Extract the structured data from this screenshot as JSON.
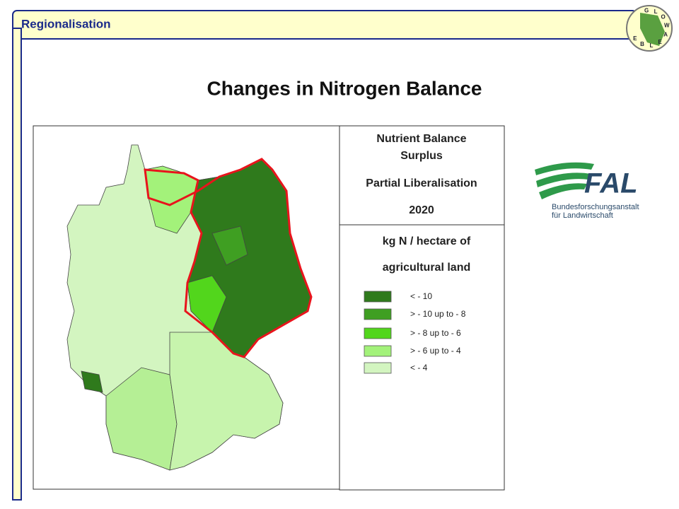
{
  "header": {
    "label": "Regionalisation"
  },
  "title": "Changes in Nitrogen Balance",
  "panel": {
    "heading": [
      "Nutrient Balance",
      "Surplus"
    ],
    "scenario": "Partial Liberalisation",
    "year": "2020",
    "unit": [
      "kg N / hectare of",
      "agricultural land"
    ]
  },
  "legend": [
    {
      "label": "< - 10",
      "color": "#2f7a1c"
    },
    {
      "label": "> - 10 up to - 8",
      "color": "#3f9f22"
    },
    {
      "label": "> - 8 up to - 6",
      "color": "#52d61c"
    },
    {
      "label": "> - 6 up to - 4",
      "color": "#a3f27a"
    },
    {
      "label": "< - 4",
      "color": "#d3f5c0"
    }
  ],
  "fal_logo": {
    "name": "FAL",
    "line1": "Bundesforschungsanstalt",
    "line2": "für Landwirtschaft"
  },
  "glowa_logo": [
    "G",
    "L",
    "O",
    "W",
    "A",
    "E",
    "L",
    "B",
    "E"
  ]
}
